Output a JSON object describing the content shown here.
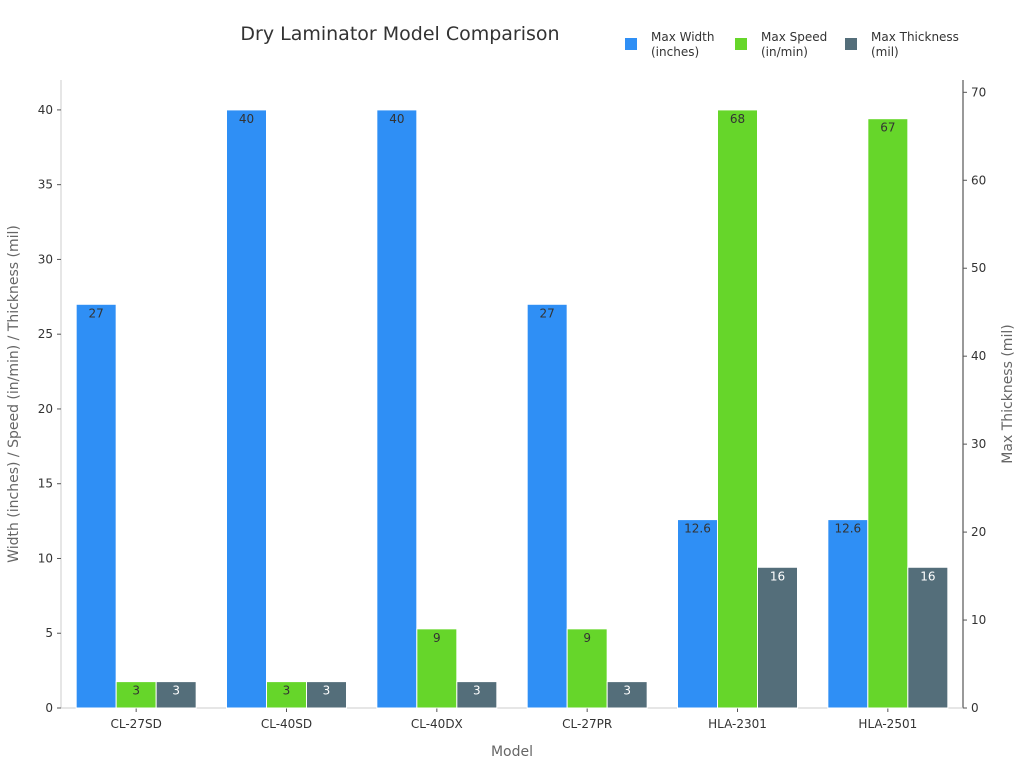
{
  "chart_data": {
    "type": "bar",
    "title": "Dry Laminator Model Comparison",
    "xlabel": "Model",
    "ylabel": "Width (inches) / Speed (in/min) / Thickness (mil)",
    "ylabel_right": "Max Thickness (mil)",
    "categories": [
      "CL-27SD",
      "CL-40SD",
      "CL-40DX",
      "CL-27PR",
      "HLA-2301",
      "HLA-2501"
    ],
    "ylim": [
      0,
      42
    ],
    "ylim_right": [
      0,
      71.4
    ],
    "yticks": [
      0,
      5,
      10,
      15,
      20,
      25,
      30,
      35,
      40
    ],
    "yticks_right": [
      0,
      10,
      20,
      30,
      40,
      50,
      60,
      70
    ],
    "grid": false,
    "legend_position": "top-right",
    "series": [
      {
        "name": "Max Width\n(inches)",
        "axis": "left",
        "color": "#2f8ff5",
        "label_color": "#333333",
        "values": [
          27,
          40,
          40,
          27,
          12.6,
          12.6
        ]
      },
      {
        "name": "Max Speed\n(in/min)",
        "axis": "right",
        "color": "#66d62a",
        "label_color": "#333333",
        "values": [
          3,
          3,
          9,
          9,
          68,
          67
        ]
      },
      {
        "name": "Max Thickness\n(mil)",
        "axis": "right",
        "color": "#546e7a",
        "label_color": "#ffffff",
        "values": [
          3,
          3,
          3,
          3,
          16,
          16
        ]
      }
    ]
  }
}
